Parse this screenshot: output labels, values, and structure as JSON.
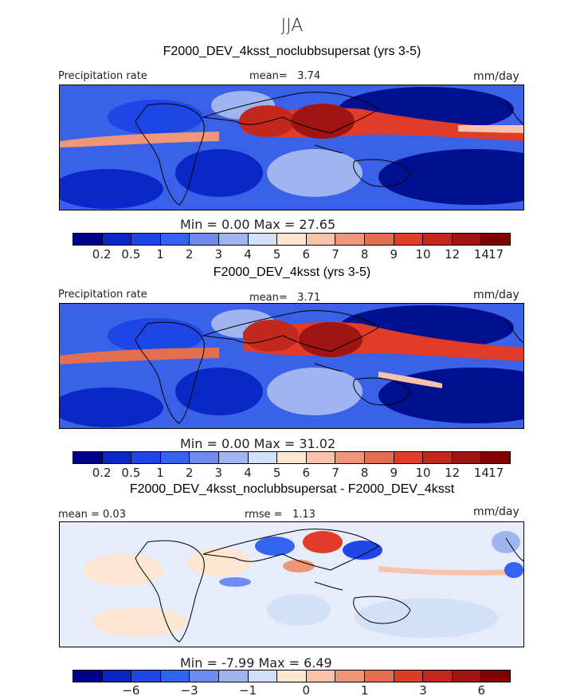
{
  "season": "JJA",
  "panels": [
    {
      "title": "F2000_DEV_4ksst_noclubbsupersat (yrs 3-5)",
      "left_label": "Precipitation rate",
      "center_label": "mean=",
      "center_value": "3.74",
      "units": "mm/day",
      "minmax": "Min =    0.00 Max =   27.65",
      "colorbar": [
        "#00008b",
        "#0a28c8",
        "#1e46e6",
        "#3264f0",
        "#6e8cf0",
        "#a0b4f0",
        "#d2e1f8",
        "#fce6d2",
        "#f8c3aa",
        "#f09678",
        "#e66e50",
        "#e13c28",
        "#c3281e",
        "#a01414",
        "#820000"
      ],
      "tick_labels": [
        "0.2",
        "0.5",
        "1",
        "2",
        "3",
        "4",
        "5",
        "6",
        "7",
        "8",
        "9",
        "10",
        "12",
        "14",
        "17"
      ]
    },
    {
      "title": "F2000_DEV_4ksst (yrs 3-5)",
      "left_label": "Precipitation rate",
      "center_label": "mean=",
      "center_value": "3.71",
      "units": "mm/day",
      "minmax": "Min =    0.00 Max =   31.02",
      "colorbar": [
        "#00008b",
        "#0a28c8",
        "#1e46e6",
        "#3264f0",
        "#6e8cf0",
        "#a0b4f0",
        "#d2e1f8",
        "#fce6d2",
        "#f8c3aa",
        "#f09678",
        "#e66e50",
        "#e13c28",
        "#c3281e",
        "#a01414",
        "#820000"
      ],
      "tick_labels": [
        "0.2",
        "0.5",
        "1",
        "2",
        "3",
        "4",
        "5",
        "6",
        "7",
        "8",
        "9",
        "10",
        "12",
        "14",
        "17"
      ]
    },
    {
      "title": "F2000_DEV_4ksst_noclubbsupersat - F2000_DEV_4ksst",
      "left_label": "mean =   0.03",
      "center_label": "rmse =",
      "center_value": "1.13",
      "units": "mm/day",
      "minmax": "Min =  -7.99 Max =    6.49",
      "colorbar": [
        "#00008b",
        "#0a28c8",
        "#1e46e6",
        "#3264f0",
        "#6e8cf0",
        "#a0b4f0",
        "#d2e1f8",
        "#fce6d2",
        "#f8c3aa",
        "#f09678",
        "#e66e50",
        "#e13c28",
        "#c3281e",
        "#a01414",
        "#820000"
      ],
      "tick_labels": [
        "−6",
        "−3",
        "−1",
        "0",
        "1",
        "3",
        "6"
      ]
    }
  ]
}
